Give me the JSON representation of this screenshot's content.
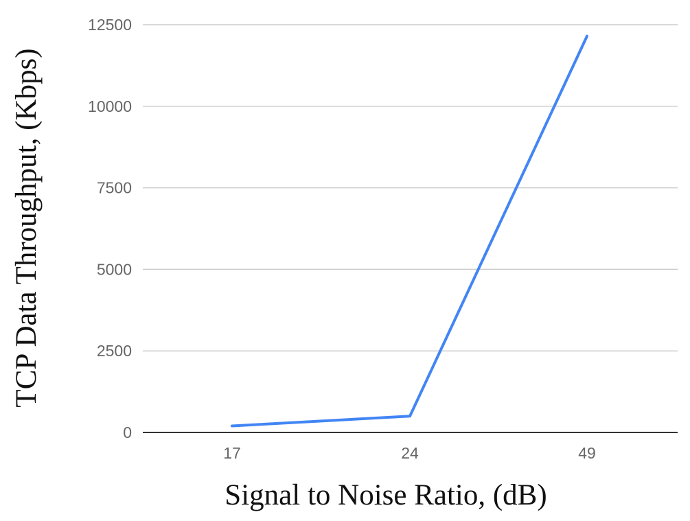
{
  "chart_data": {
    "type": "line",
    "title": "",
    "xlabel": "Signal to Noise Ratio, (dB)",
    "ylabel": "TCP Data Throughput, (Kbps)",
    "categories": [
      "17",
      "24",
      "49"
    ],
    "series": [
      {
        "values": [
          200,
          500,
          12150
        ],
        "color": "#4285f4"
      }
    ],
    "ylim": [
      0,
      12500
    ],
    "yticks": [
      0,
      2500,
      5000,
      7500,
      10000,
      12500
    ],
    "ytick_labels": [
      "0",
      "2500",
      "5000",
      "7500",
      "10000",
      "12500"
    ],
    "grid": true,
    "legend": "none"
  }
}
